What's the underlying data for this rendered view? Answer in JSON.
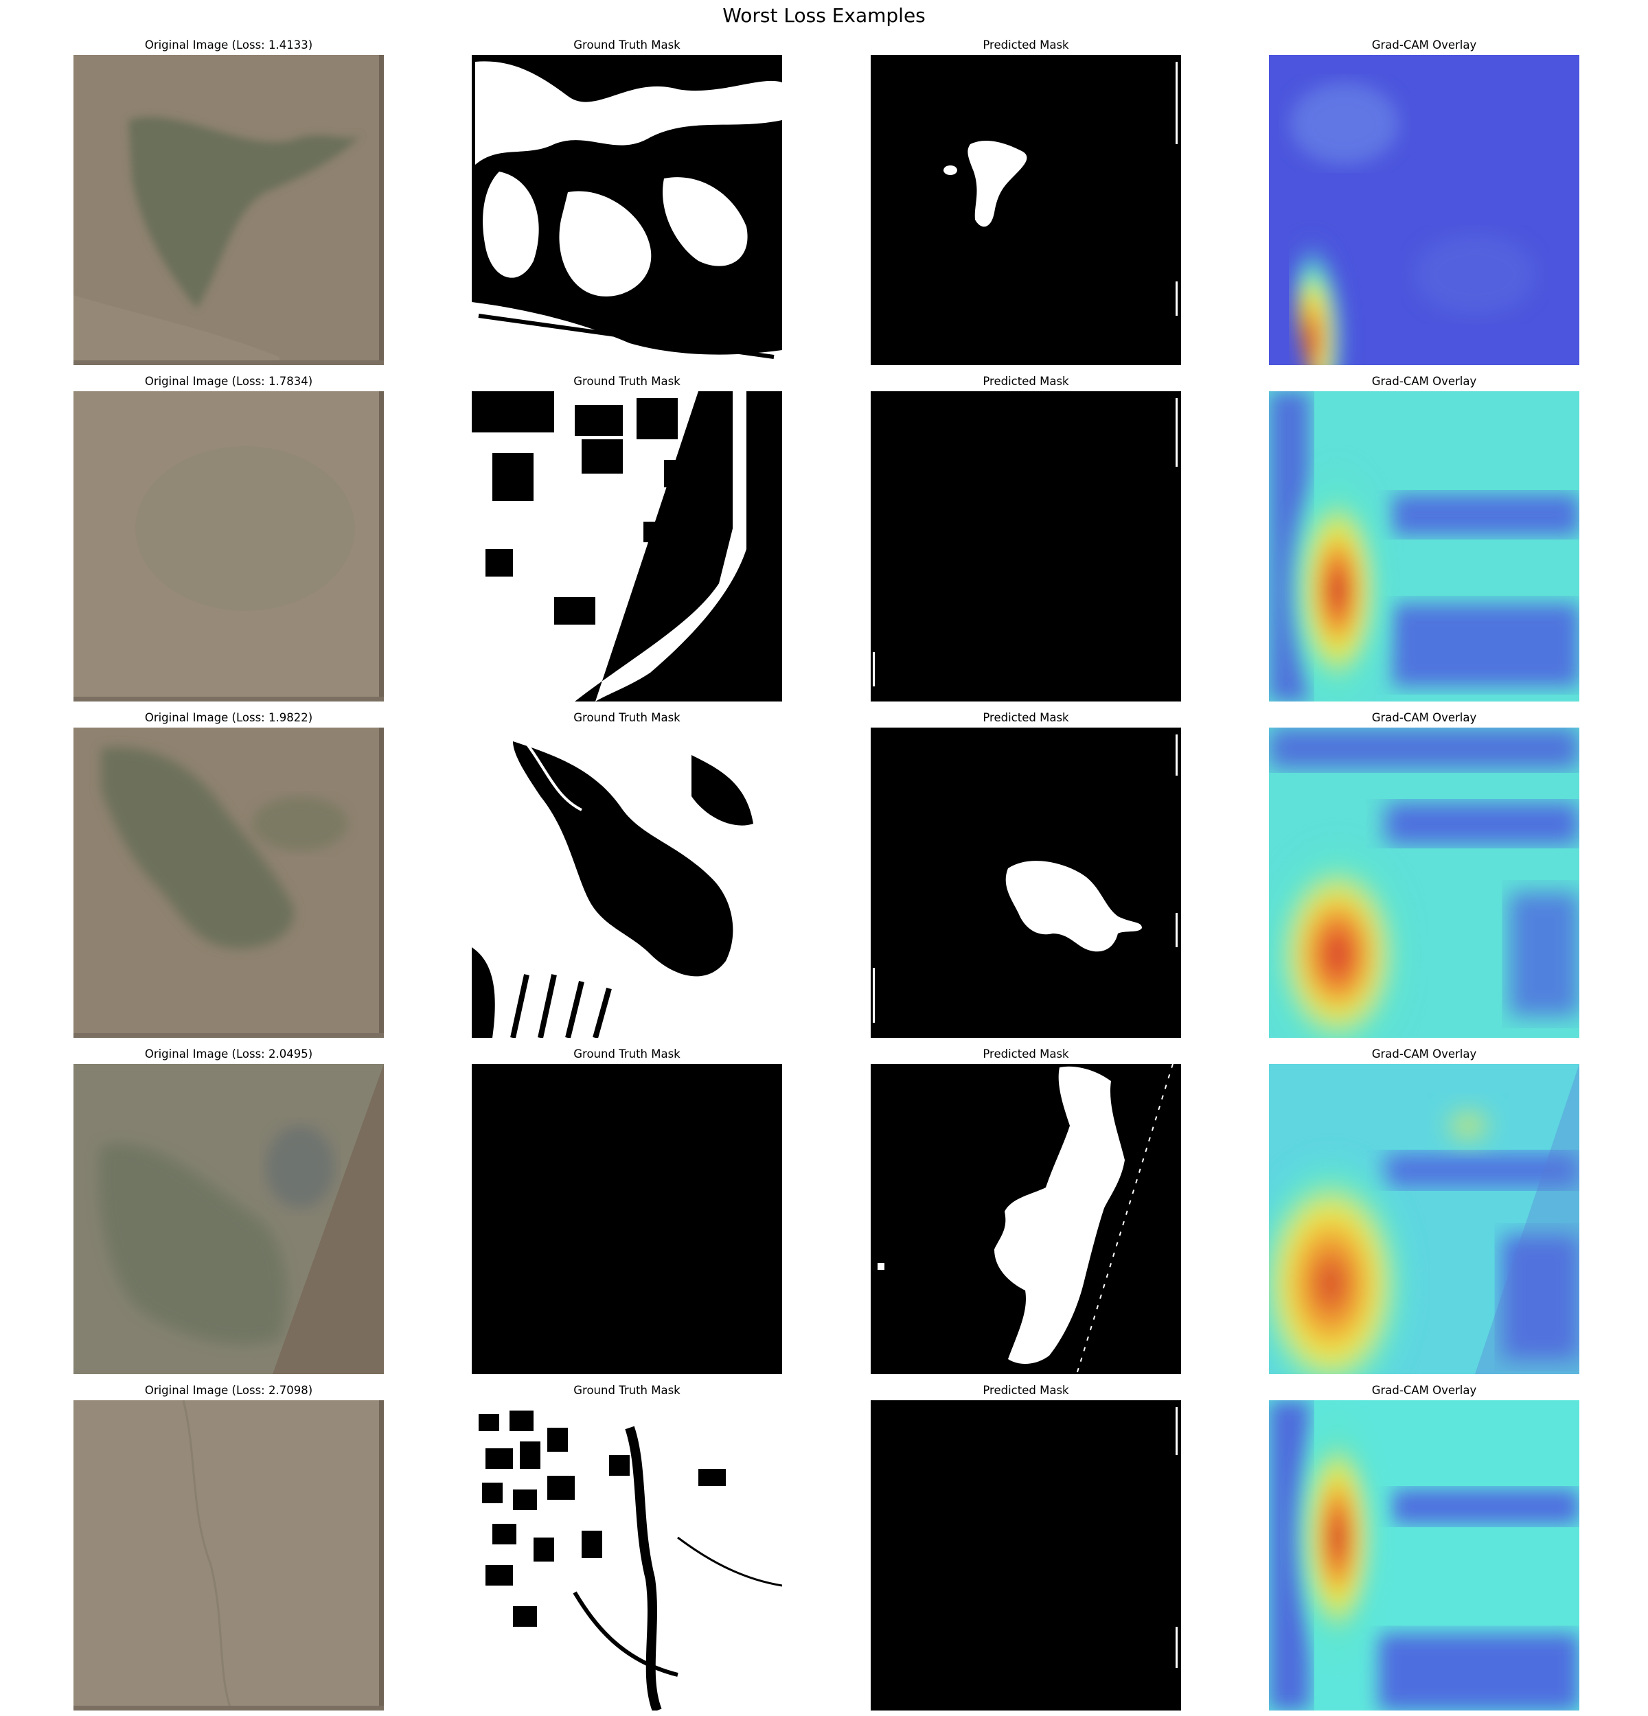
{
  "figure": {
    "title": "Worst Loss Examples"
  },
  "rows": [
    {
      "original_title": "Original Image (Loss: 1.4133)",
      "ground_truth_title": "Ground Truth Mask",
      "predicted_title": "Predicted Mask",
      "gradcam_title": "Grad-CAM Overlay"
    },
    {
      "original_title": "Original Image (Loss: 1.7834)",
      "ground_truth_title": "Ground Truth Mask",
      "predicted_title": "Predicted Mask",
      "gradcam_title": "Grad-CAM Overlay"
    },
    {
      "original_title": "Original Image (Loss: 1.9822)",
      "ground_truth_title": "Ground Truth Mask",
      "predicted_title": "Predicted Mask",
      "gradcam_title": "Grad-CAM Overlay"
    },
    {
      "original_title": "Original Image (Loss: 2.0495)",
      "ground_truth_title": "Ground Truth Mask",
      "predicted_title": "Predicted Mask",
      "gradcam_title": "Grad-CAM Overlay"
    },
    {
      "original_title": "Original Image (Loss: 2.7098)",
      "ground_truth_title": "Ground Truth Mask",
      "predicted_title": "Predicted Mask",
      "gradcam_title": "Grad-CAM Overlay"
    }
  ],
  "colors": {
    "terrain_base": "#8f8270",
    "terrain_dark": "#5f6a52",
    "mask_background": "#000000",
    "mask_foreground": "#ffffff",
    "cam_low": "#3a3fd8",
    "cam_mid": "#56e6e0",
    "cam_high": "#e23b2a"
  }
}
